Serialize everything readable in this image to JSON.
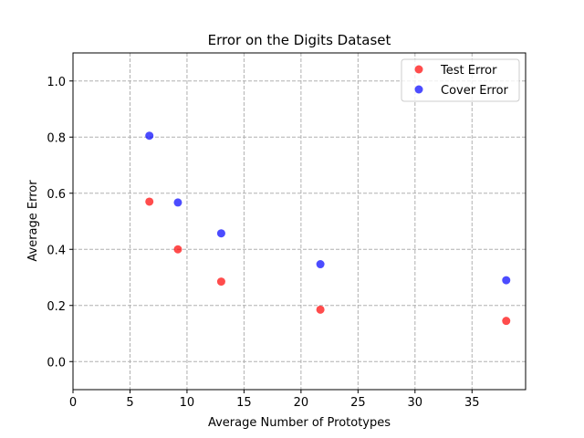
{
  "chart_data": {
    "type": "scatter",
    "title": "Error on the Digits Dataset",
    "xlabel": "Average Number of Prototypes",
    "ylabel": "Average Error",
    "xlim": [
      0,
      39.7
    ],
    "ylim": [
      -0.1,
      1.1
    ],
    "xticks": [
      0,
      5,
      10,
      15,
      20,
      25,
      30,
      35
    ],
    "yticks": [
      0.0,
      0.2,
      0.4,
      0.6,
      0.8,
      1.0
    ],
    "xtick_labels": [
      "0",
      "5",
      "10",
      "15",
      "20",
      "25",
      "30",
      "35"
    ],
    "ytick_labels": [
      "0.0",
      "0.2",
      "0.4",
      "0.6",
      "0.8",
      "1.0"
    ],
    "grid": true,
    "legend_position": "top-right",
    "series": [
      {
        "name": "Test Error",
        "color": "#ff0000",
        "x": [
          6.7,
          9.2,
          13.0,
          21.7,
          38.0
        ],
        "y": [
          0.57,
          0.4,
          0.285,
          0.185,
          0.145
        ]
      },
      {
        "name": "Cover Error",
        "color": "#0000ff",
        "x": [
          6.7,
          9.2,
          13.0,
          21.7,
          38.0
        ],
        "y": [
          0.805,
          0.567,
          0.457,
          0.347,
          0.29
        ]
      }
    ]
  }
}
